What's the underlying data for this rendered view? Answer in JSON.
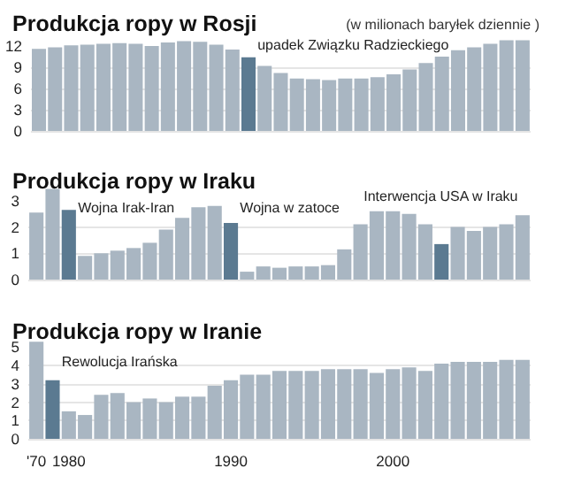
{
  "chart_data": [
    {
      "type": "bar",
      "title": "Produkcja ropy w Rosji",
      "subtitle": "(w milionach baryłek dziennie )",
      "categories": [
        null,
        null,
        null,
        null,
        null,
        null,
        null,
        null,
        null,
        null,
        null,
        null,
        null,
        null,
        null,
        null,
        null,
        null,
        null,
        null,
        null,
        null,
        null,
        null,
        null,
        null,
        null,
        null,
        null,
        null,
        null
      ],
      "values": [
        11.6,
        11.8,
        12.1,
        12.2,
        12.3,
        12.4,
        12.3,
        12.0,
        12.5,
        12.7,
        12.6,
        12.2,
        11.5,
        10.4,
        9.2,
        8.2,
        7.4,
        7.3,
        7.2,
        7.4,
        7.4,
        7.6,
        8.0,
        8.7,
        9.6,
        10.5,
        11.4,
        11.8,
        12.3,
        12.8,
        12.8
      ],
      "colors": [
        "#a9b6c2",
        "#a9b6c2",
        "#a9b6c2",
        "#a9b6c2",
        "#a9b6c2",
        "#a9b6c2",
        "#a9b6c2",
        "#a9b6c2",
        "#a9b6c2",
        "#a9b6c2",
        "#a9b6c2",
        "#a9b6c2",
        "#a9b6c2",
        "#5b7a91",
        "#a9b6c2",
        "#a9b6c2",
        "#a9b6c2",
        "#a9b6c2",
        "#a9b6c2",
        "#a9b6c2",
        "#a9b6c2",
        "#a9b6c2",
        "#a9b6c2",
        "#a9b6c2",
        "#a9b6c2",
        "#a9b6c2",
        "#a9b6c2",
        "#a9b6c2",
        "#a9b6c2",
        "#a9b6c2",
        "#a9b6c2"
      ],
      "annotations": [
        "upadek Związku Radzieckiego"
      ],
      "ylim": [
        0,
        13.5
      ],
      "yticks": [
        0,
        3,
        6,
        9,
        12
      ],
      "grid": "y"
    },
    {
      "type": "bar",
      "title": "Produkcja ropy w Iraku",
      "categories": [
        null,
        null,
        null,
        null,
        null,
        null,
        null,
        null,
        null,
        null,
        null,
        null,
        null,
        null,
        null,
        null,
        null,
        null,
        null,
        null,
        null,
        null,
        null,
        null,
        null,
        null,
        null,
        null,
        null,
        null,
        null
      ],
      "values": [
        2.55,
        3.45,
        2.65,
        0.9,
        1.0,
        1.1,
        1.2,
        1.4,
        1.9,
        2.35,
        2.75,
        2.8,
        2.15,
        0.3,
        0.5,
        0.45,
        0.5,
        0.5,
        0.55,
        1.15,
        2.1,
        2.6,
        2.6,
        2.5,
        2.1,
        1.35,
        2.0,
        1.85,
        2.0,
        2.1,
        2.45
      ],
      "colors": [
        "#a9b6c2",
        "#a9b6c2",
        "#5b7a91",
        "#a9b6c2",
        "#a9b6c2",
        "#a9b6c2",
        "#a9b6c2",
        "#a9b6c2",
        "#a9b6c2",
        "#a9b6c2",
        "#a9b6c2",
        "#a9b6c2",
        "#5b7a91",
        "#a9b6c2",
        "#a9b6c2",
        "#a9b6c2",
        "#a9b6c2",
        "#a9b6c2",
        "#a9b6c2",
        "#a9b6c2",
        "#a9b6c2",
        "#a9b6c2",
        "#a9b6c2",
        "#a9b6c2",
        "#a9b6c2",
        "#5b7a91",
        "#a9b6c2",
        "#a9b6c2",
        "#a9b6c2",
        "#a9b6c2",
        "#a9b6c2"
      ],
      "annotations": [
        "Wojna Irak-Iran",
        "Wojna w zatoce",
        "Interwencja USA w Iraku"
      ],
      "ylim": [
        0,
        3.5
      ],
      "yticks": [
        0,
        1,
        2,
        3
      ],
      "grid": "y"
    },
    {
      "type": "bar",
      "title": "Produkcja ropy w Iranie",
      "categories": [
        "'70",
        null,
        "1980",
        null,
        null,
        null,
        null,
        null,
        null,
        null,
        null,
        null,
        "1990",
        null,
        null,
        null,
        null,
        null,
        null,
        null,
        null,
        null,
        "2000",
        null,
        null,
        null,
        null,
        null,
        null,
        null,
        null
      ],
      "values": [
        5.3,
        3.2,
        1.5,
        1.3,
        2.4,
        2.5,
        2.0,
        2.2,
        2.0,
        2.3,
        2.3,
        2.9,
        3.2,
        3.5,
        3.5,
        3.7,
        3.7,
        3.7,
        3.8,
        3.8,
        3.8,
        3.6,
        3.8,
        3.9,
        3.7,
        4.1,
        4.2,
        4.2,
        4.2,
        4.3,
        4.3
      ],
      "colors": [
        "#a9b6c2",
        "#5b7a91",
        "#a9b6c2",
        "#a9b6c2",
        "#a9b6c2",
        "#a9b6c2",
        "#a9b6c2",
        "#a9b6c2",
        "#a9b6c2",
        "#a9b6c2",
        "#a9b6c2",
        "#a9b6c2",
        "#a9b6c2",
        "#a9b6c2",
        "#a9b6c2",
        "#a9b6c2",
        "#a9b6c2",
        "#a9b6c2",
        "#a9b6c2",
        "#a9b6c2",
        "#a9b6c2",
        "#a9b6c2",
        "#a9b6c2",
        "#a9b6c2",
        "#a9b6c2",
        "#a9b6c2",
        "#a9b6c2",
        "#a9b6c2",
        "#a9b6c2",
        "#a9b6c2",
        "#a9b6c2"
      ],
      "annotations": [
        "Rewolucja Irańska"
      ],
      "ylim": [
        0,
        5.5
      ],
      "yticks": [
        0,
        1,
        2,
        3,
        4,
        5
      ],
      "grid": "y"
    }
  ]
}
